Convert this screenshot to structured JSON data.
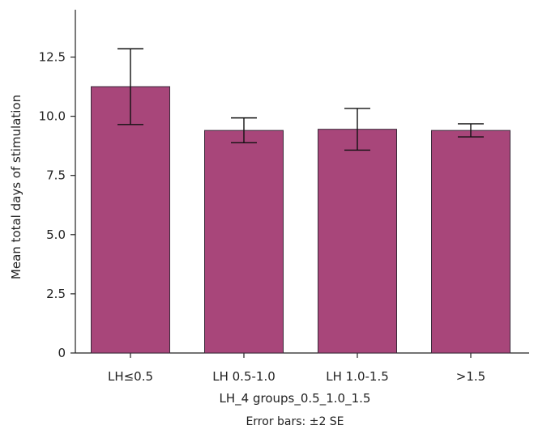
{
  "chart_data": {
    "type": "bar",
    "categories": [
      "LH≤0.5",
      "LH 0.5-1.0",
      "LH 1.0-1.5",
      ">1.5"
    ],
    "values": [
      11.25,
      9.4,
      9.45,
      9.4
    ],
    "error_low": [
      9.65,
      8.88,
      8.57,
      9.13
    ],
    "error_high": [
      12.85,
      9.93,
      10.33,
      9.68
    ],
    "title": "",
    "xlabel": "LH_4 groups_0.5_1.0_1.5",
    "ylabel": "Mean total days of stimulation",
    "ylim": [
      0,
      14.5
    ],
    "yticks": [
      0,
      2.5,
      5.0,
      7.5,
      10.0,
      12.5
    ],
    "ytick_labels": [
      "0",
      "2.5",
      "5.0",
      "7.5",
      "10.0",
      "12.5"
    ],
    "note": "Error bars: ±2 SE",
    "grid": false,
    "legend": "none",
    "colors": {
      "bar": "#a8467a",
      "bar_edge": "#3a2a3a",
      "axis": "#222222"
    }
  }
}
